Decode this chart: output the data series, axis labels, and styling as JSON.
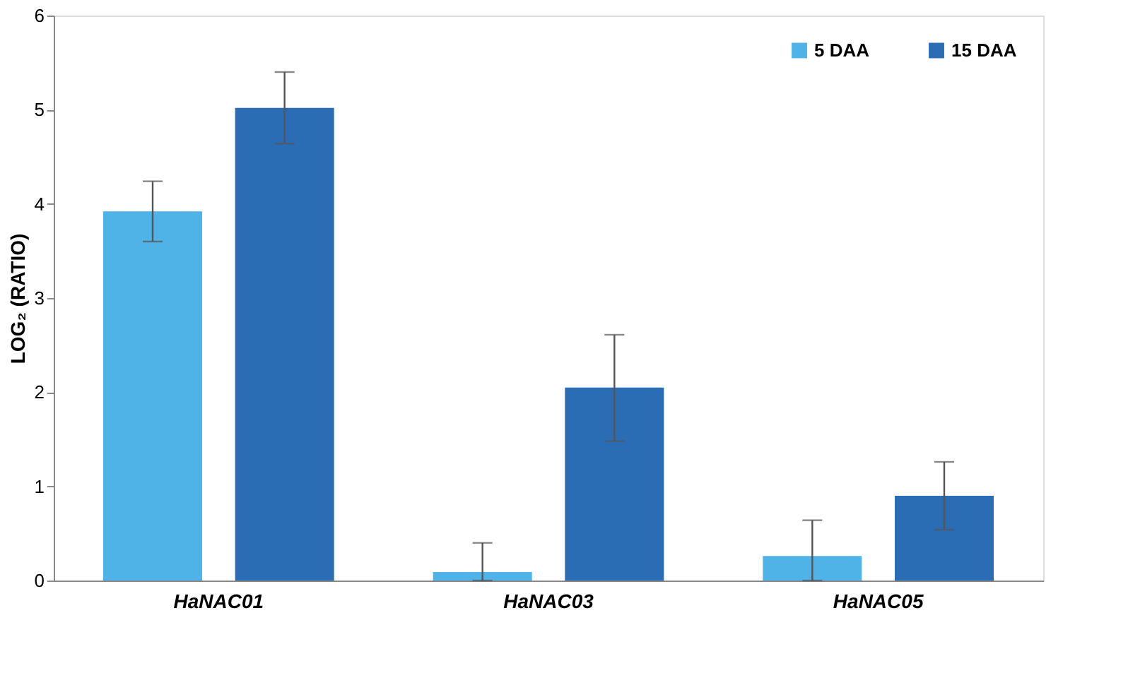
{
  "chart_data": {
    "type": "bar",
    "ylabel": "LOG₂ (RATIO)",
    "categories": [
      "HaNAC01",
      "HaNAC03",
      "HaNAC05"
    ],
    "series": [
      {
        "name": "5 DAA",
        "color": "#4fb3e8",
        "values": [
          3.92,
          0.09,
          0.26
        ],
        "errors": [
          [
            3.6,
            4.24
          ],
          [
            0,
            0.4
          ],
          [
            0,
            0.64
          ]
        ]
      },
      {
        "name": "15 DAA",
        "color": "#2a6db5",
        "values": [
          5.02,
          2.05,
          0.9
        ],
        "errors": [
          [
            4.64,
            5.4
          ],
          [
            1.48,
            2.61
          ],
          [
            0.54,
            1.26
          ]
        ]
      }
    ],
    "ylim": [
      0,
      6
    ],
    "yticks": [
      0,
      1,
      2,
      3,
      4,
      5,
      6
    ],
    "grid": false,
    "legend": "top right"
  }
}
